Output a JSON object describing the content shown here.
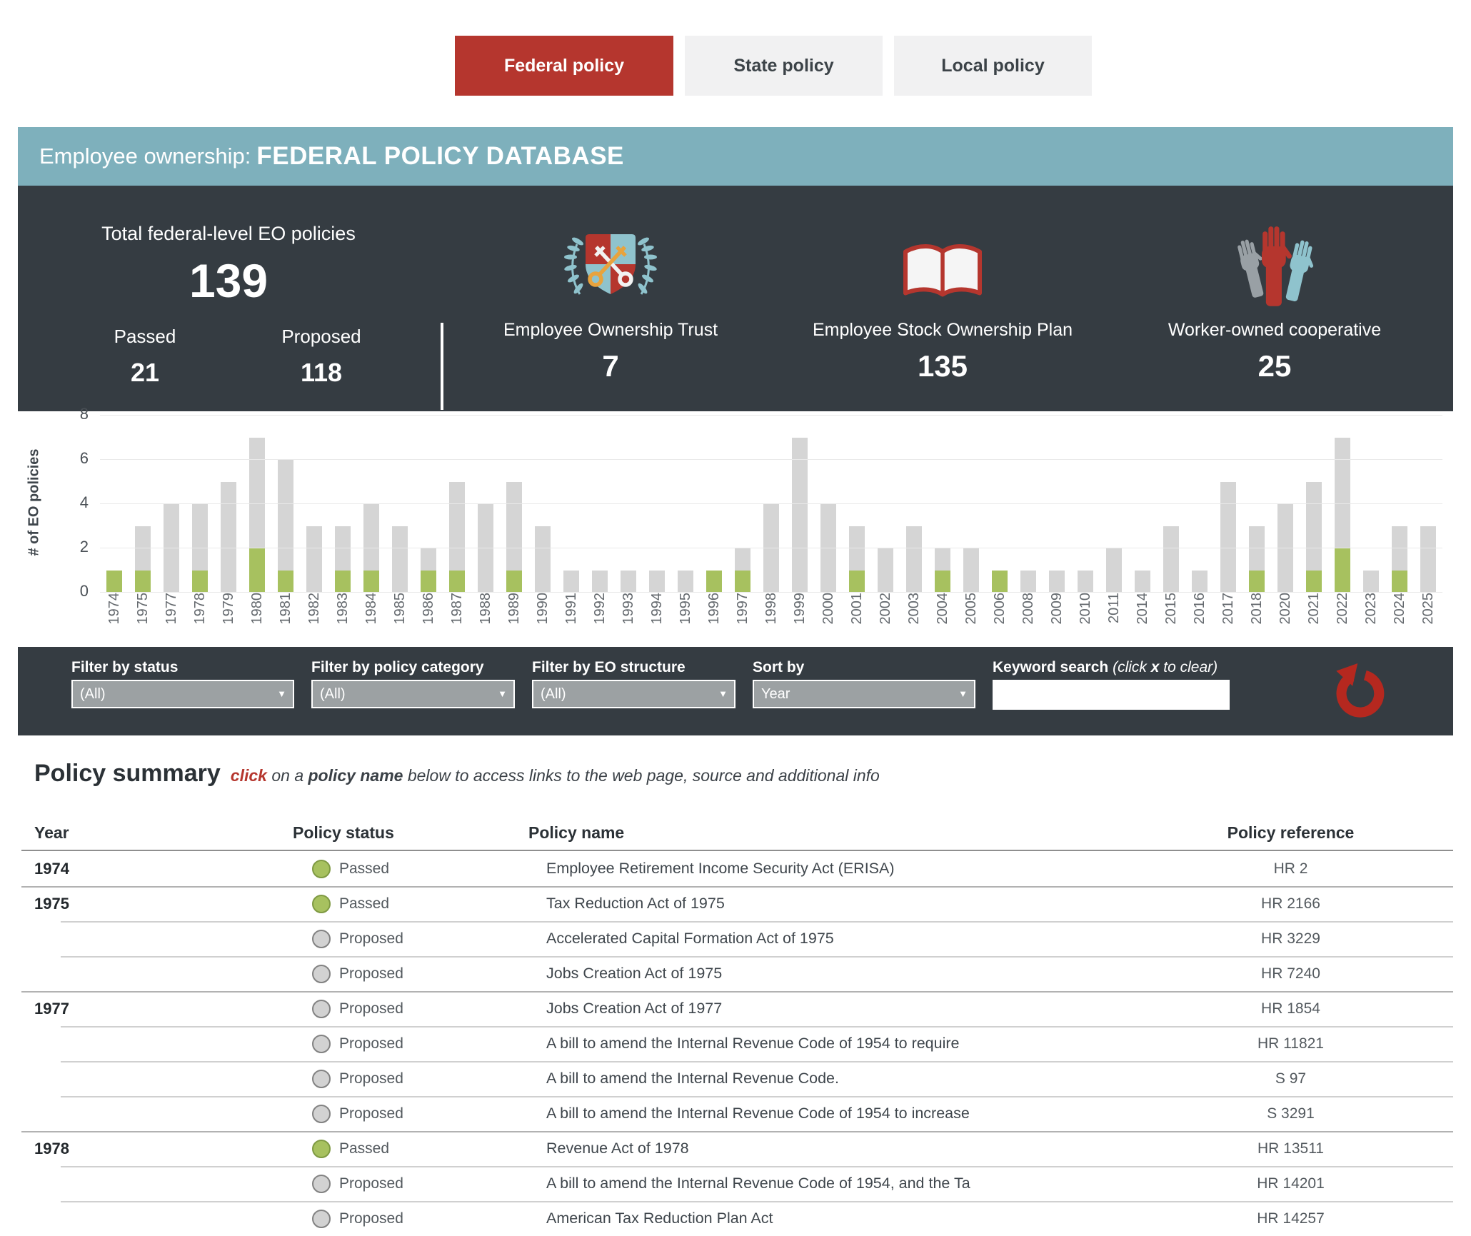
{
  "tabs": [
    {
      "label": "Federal policy",
      "active": true
    },
    {
      "label": "State policy",
      "active": false
    },
    {
      "label": "Local policy",
      "active": false
    }
  ],
  "banner": {
    "prefix": "Employee ownership:",
    "title": "FEDERAL POLICY DATABASE"
  },
  "stats": {
    "total_label": "Total federal-level EO policies",
    "total_value": "139",
    "passed_label": "Passed",
    "passed_value": "21",
    "proposed_label": "Proposed",
    "proposed_value": "118",
    "structures": [
      {
        "label": "Employee Ownership Trust",
        "value": "7",
        "icon": "crest-keys-icon"
      },
      {
        "label": "Employee Stock Ownership Plan",
        "value": "135",
        "icon": "open-book-icon"
      },
      {
        "label": "Worker-owned cooperative",
        "value": "25",
        "icon": "raised-hands-icon"
      }
    ]
  },
  "chart_data": {
    "type": "bar",
    "stacked": true,
    "ylabel": "# of EO policies",
    "ylim": [
      0,
      8
    ],
    "yticks": [
      0,
      2,
      4,
      6,
      8
    ],
    "grid": true,
    "legend_position": "none",
    "categories": [
      "1974",
      "1975",
      "1977",
      "1978",
      "1979",
      "1980",
      "1981",
      "1982",
      "1983",
      "1984",
      "1985",
      "1986",
      "1987",
      "1988",
      "1989",
      "1990",
      "1991",
      "1992",
      "1993",
      "1994",
      "1995",
      "1996",
      "1997",
      "1998",
      "1999",
      "2000",
      "2001",
      "2002",
      "2003",
      "2004",
      "2005",
      "2006",
      "2008",
      "2009",
      "2010",
      "2011",
      "2014",
      "2015",
      "2016",
      "2017",
      "2018",
      "2020",
      "2021",
      "2022",
      "2023",
      "2024",
      "2025"
    ],
    "series": [
      {
        "name": "Passed",
        "color": "#a7c15f",
        "values": [
          1,
          1,
          0,
          1,
          0,
          2,
          1,
          0,
          1,
          1,
          0,
          1,
          1,
          0,
          1,
          0,
          0,
          0,
          0,
          0,
          0,
          1,
          1,
          0,
          0,
          0,
          1,
          0,
          0,
          1,
          0,
          1,
          0,
          0,
          0,
          0,
          0,
          0,
          0,
          0,
          1,
          0,
          1,
          2,
          0,
          1,
          0
        ]
      },
      {
        "name": "Proposed",
        "color": "#d5d5d5",
        "values": [
          0,
          2,
          4,
          3,
          5,
          5,
          5,
          3,
          2,
          3,
          3,
          1,
          4,
          4,
          4,
          3,
          1,
          1,
          1,
          1,
          1,
          0,
          1,
          4,
          7,
          4,
          2,
          2,
          3,
          1,
          2,
          0,
          1,
          1,
          1,
          2,
          1,
          3,
          1,
          5,
          2,
          4,
          4,
          5,
          1,
          2,
          3
        ]
      }
    ]
  },
  "filters": {
    "groups": [
      {
        "label": "Filter by status",
        "value": "(All)"
      },
      {
        "label": "Filter by policy category",
        "value": "(All)"
      },
      {
        "label": "Filter by EO structure",
        "value": "(All)"
      },
      {
        "label": "Sort by",
        "value": "Year"
      }
    ],
    "search_label_parts": [
      {
        "t": "Keyword search",
        "s": "b"
      },
      {
        "t": " (click ",
        "s": "i"
      },
      {
        "t": "x",
        "s": "bi"
      },
      {
        "t": " to clear)",
        "s": "i"
      }
    ],
    "search_value": "",
    "reset_icon": "rotate-ccw-icon",
    "reset_color": "#b5281f"
  },
  "summary": {
    "title": "Policy summary",
    "hint_parts": [
      {
        "t": "click",
        "s": "redbi"
      },
      {
        "t": " on a ",
        "s": "i"
      },
      {
        "t": "policy name",
        "s": "bi"
      },
      {
        "t": " below to access links to the web page, source and additional info",
        "s": "i"
      }
    ]
  },
  "table": {
    "columns": [
      "Year",
      "Policy status",
      "Policy name",
      "Policy reference"
    ],
    "rows": [
      {
        "year": "1974",
        "group": true,
        "status": "Passed",
        "name": "Employee Retirement Income Security Act (ERISA)",
        "ref": "HR 2"
      },
      {
        "year": "1975",
        "group": true,
        "status": "Passed",
        "name": "Tax Reduction Act of 1975",
        "ref": "HR 2166"
      },
      {
        "year": "",
        "group": false,
        "status": "Proposed",
        "name": "Accelerated Capital Formation Act of 1975",
        "ref": "HR 3229"
      },
      {
        "year": "",
        "group": false,
        "status": "Proposed",
        "name": "Jobs Creation Act of 1975",
        "ref": "HR 7240"
      },
      {
        "year": "1977",
        "group": true,
        "status": "Proposed",
        "name": "Jobs Creation Act of 1977",
        "ref": "HR 1854"
      },
      {
        "year": "",
        "group": false,
        "status": "Proposed",
        "name": "A bill to amend the Internal Revenue Code of 1954 to require",
        "ref": "HR 11821"
      },
      {
        "year": "",
        "group": false,
        "status": "Proposed",
        "name": "A bill to amend the Internal Revenue Code.",
        "ref": "S 97"
      },
      {
        "year": "",
        "group": false,
        "status": "Proposed",
        "name": "A bill to amend the Internal Revenue Code of 1954 to increase",
        "ref": "S 3291"
      },
      {
        "year": "1978",
        "group": true,
        "status": "Passed",
        "name": "Revenue Act of 1978",
        "ref": "HR 13511"
      },
      {
        "year": "",
        "group": false,
        "status": "Proposed",
        "name": "A bill to amend the Internal Revenue Code of 1954, and the Ta",
        "ref": "HR 14201"
      },
      {
        "year": "",
        "group": false,
        "status": "Proposed",
        "name": "American Tax Reduction Plan Act",
        "ref": "HR 14257"
      }
    ]
  },
  "colors": {
    "accent_red": "#b5362e",
    "teal": "#7eb0bc",
    "dark_panel": "#353c42",
    "passed_green": "#a7c15f",
    "proposed_gray": "#d5d5d5"
  }
}
